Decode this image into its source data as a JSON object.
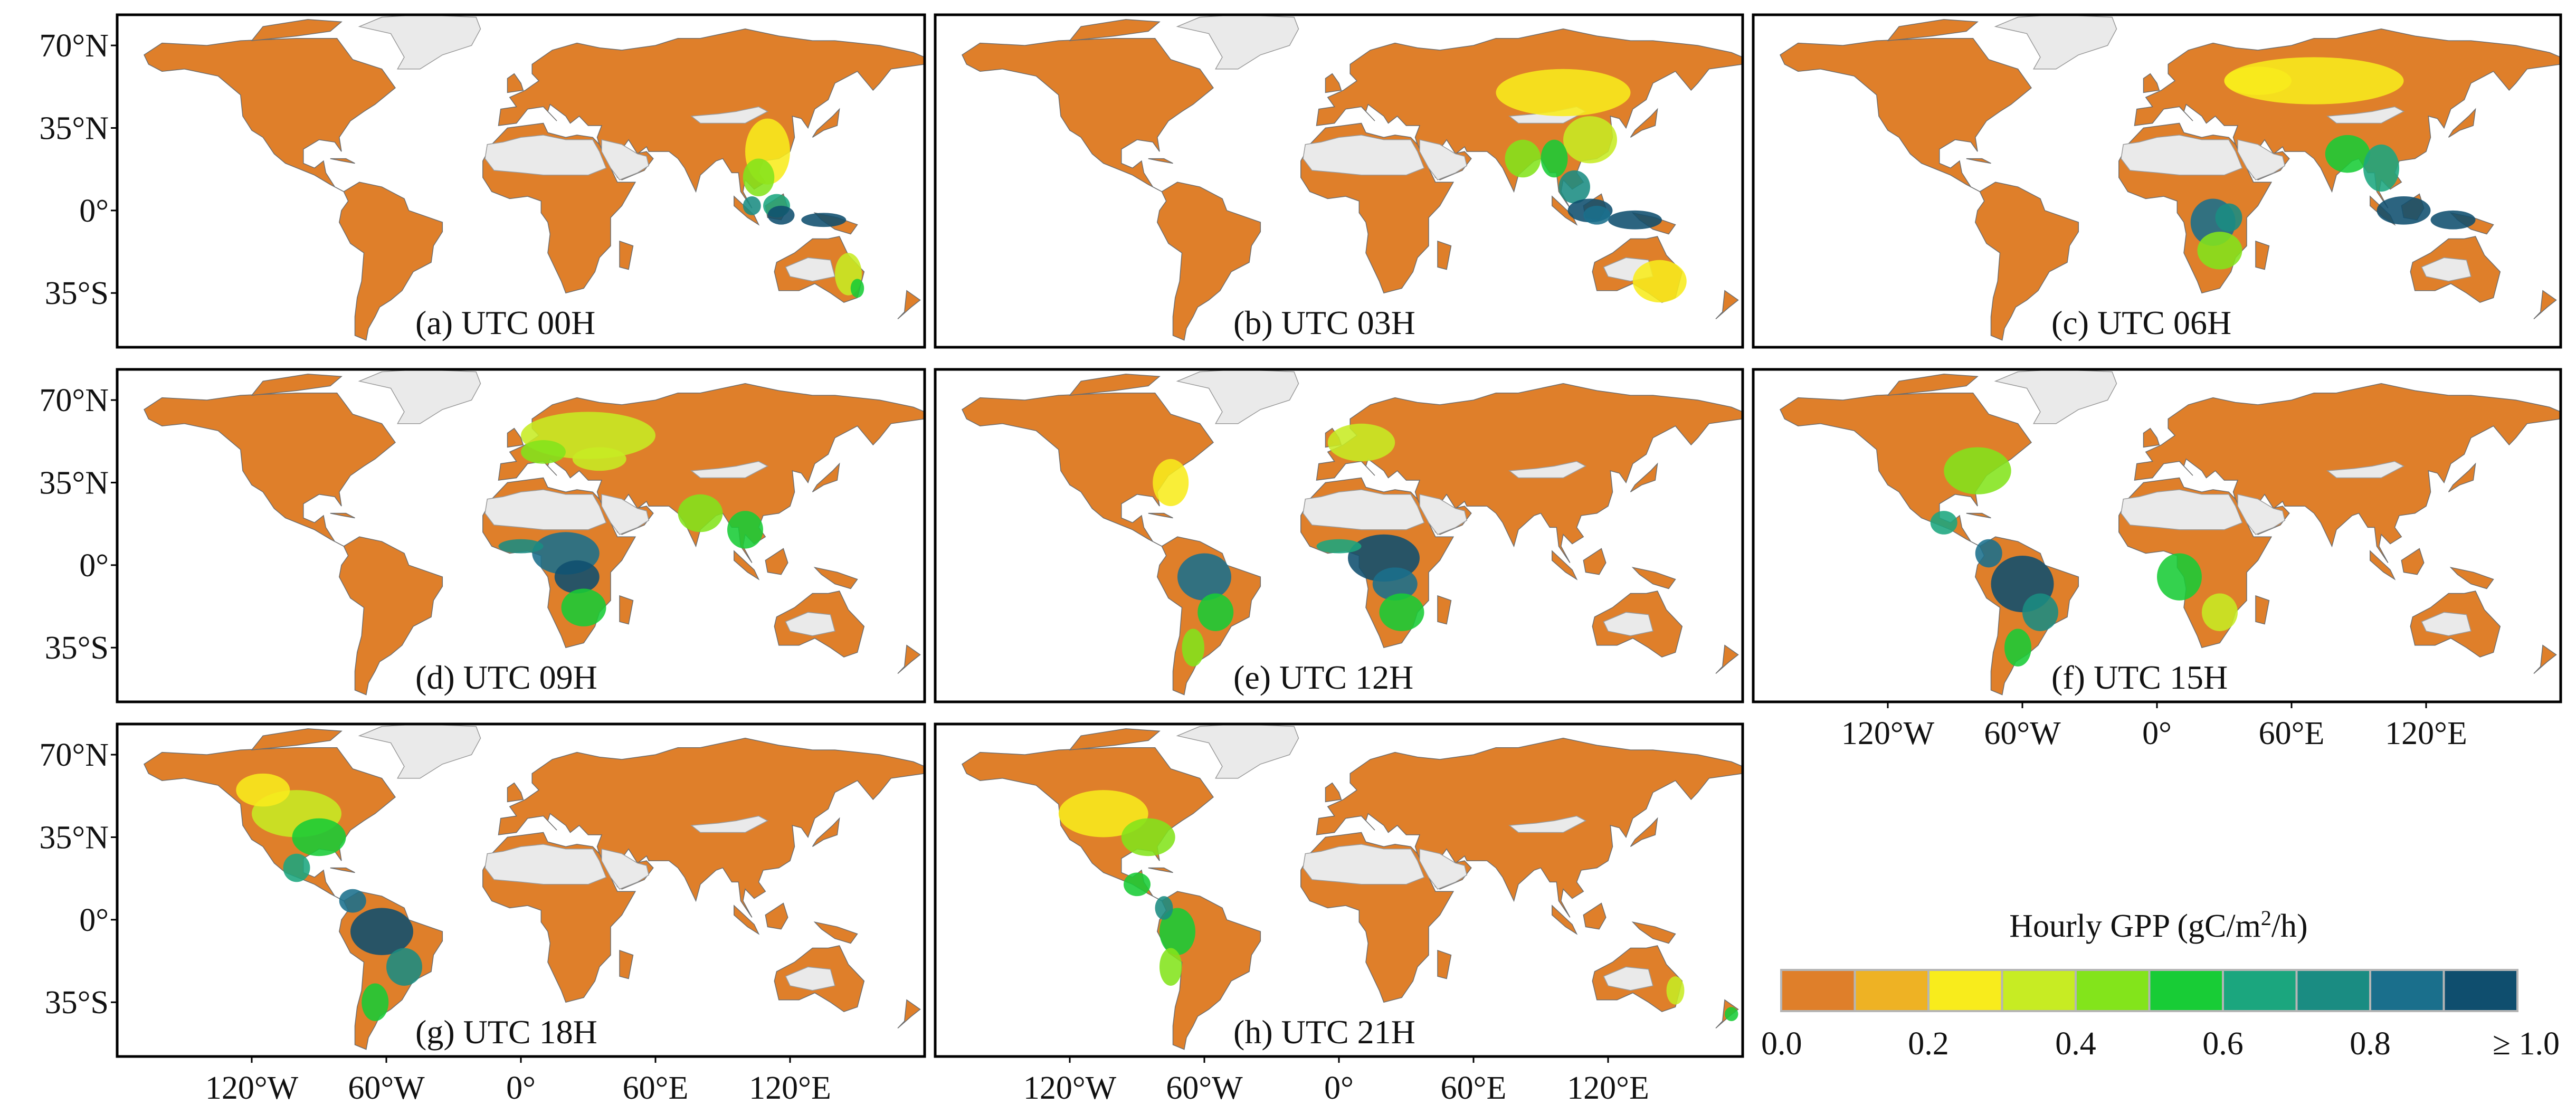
{
  "figure": {
    "legend": {
      "title_prefix": "Hourly GPP (gC/m",
      "title_sup": "2",
      "title_suffix": "/h)",
      "colors": [
        "#df7f2a",
        "#eeb224",
        "#f8ec1c",
        "#c7ec23",
        "#83e41b",
        "#18cc36",
        "#1ba67e",
        "#1a8c82",
        "#1a6f8c",
        "#0f4e6e"
      ],
      "tick_labels": [
        "0.0",
        "0.2",
        "0.4",
        "0.6",
        "0.8",
        "≥ 1.0"
      ],
      "tick_values": [
        0.0,
        0.2,
        0.4,
        0.6,
        0.8,
        1.0
      ]
    },
    "lat_labels": [
      "70°N",
      "35°N",
      "0°",
      "35°S"
    ],
    "lat_values": [
      70,
      35,
      0,
      -35
    ],
    "lon_labels": [
      "120°W",
      "60°W",
      "0°",
      "60°E",
      "120°E"
    ],
    "lon_values": [
      -120,
      -60,
      0,
      60,
      120
    ],
    "colors": {
      "land_low": "#df7f2a",
      "no_data": "#eaeaea",
      "coast": "#6d6d6d",
      "frame": "#000000"
    },
    "panels": [
      {
        "label": "(a) UTC 00H",
        "utc_hour": 0
      },
      {
        "label": "(b) UTC 03H",
        "utc_hour": 3
      },
      {
        "label": "(c) UTC 06H",
        "utc_hour": 6
      },
      {
        "label": "(d) UTC 09H",
        "utc_hour": 9
      },
      {
        "label": "(e) UTC 12H",
        "utc_hour": 12
      },
      {
        "label": "(f) UTC 15H",
        "utc_hour": 15
      },
      {
        "label": "(g) UTC 18H",
        "utc_hour": 18
      },
      {
        "label": "(h) UTC 21H",
        "utc_hour": 21
      }
    ]
  }
}
